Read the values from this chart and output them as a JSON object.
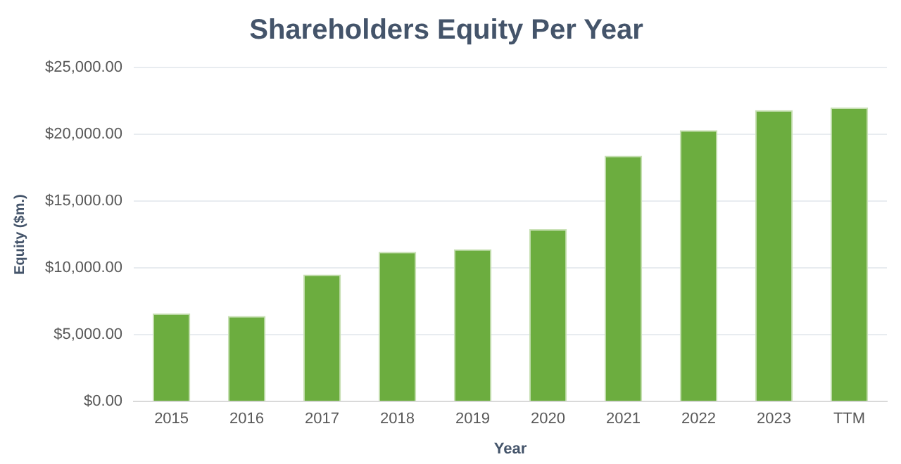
{
  "chart_data": {
    "type": "bar",
    "title": "Shareholders Equity Per Year",
    "xlabel": "Year",
    "ylabel": "Equity ($m.)",
    "categories": [
      "2015",
      "2016",
      "2017",
      "2018",
      "2019",
      "2020",
      "2021",
      "2022",
      "2023",
      "TTM"
    ],
    "values": [
      6600,
      6400,
      9500,
      11200,
      11400,
      12900,
      18400,
      20300,
      21800,
      22000
    ],
    "color": "#6cad3f",
    "ylim": [
      0,
      25000
    ],
    "yticks": [
      {
        "value": 0,
        "label": "$0.00"
      },
      {
        "value": 5000,
        "label": "$5,000.00"
      },
      {
        "value": 10000,
        "label": "$10,000.00"
      },
      {
        "value": 15000,
        "label": "$15,000.00"
      },
      {
        "value": 20000,
        "label": "$20,000.00"
      },
      {
        "value": 25000,
        "label": "$25,000.00"
      }
    ],
    "grid": "y"
  }
}
